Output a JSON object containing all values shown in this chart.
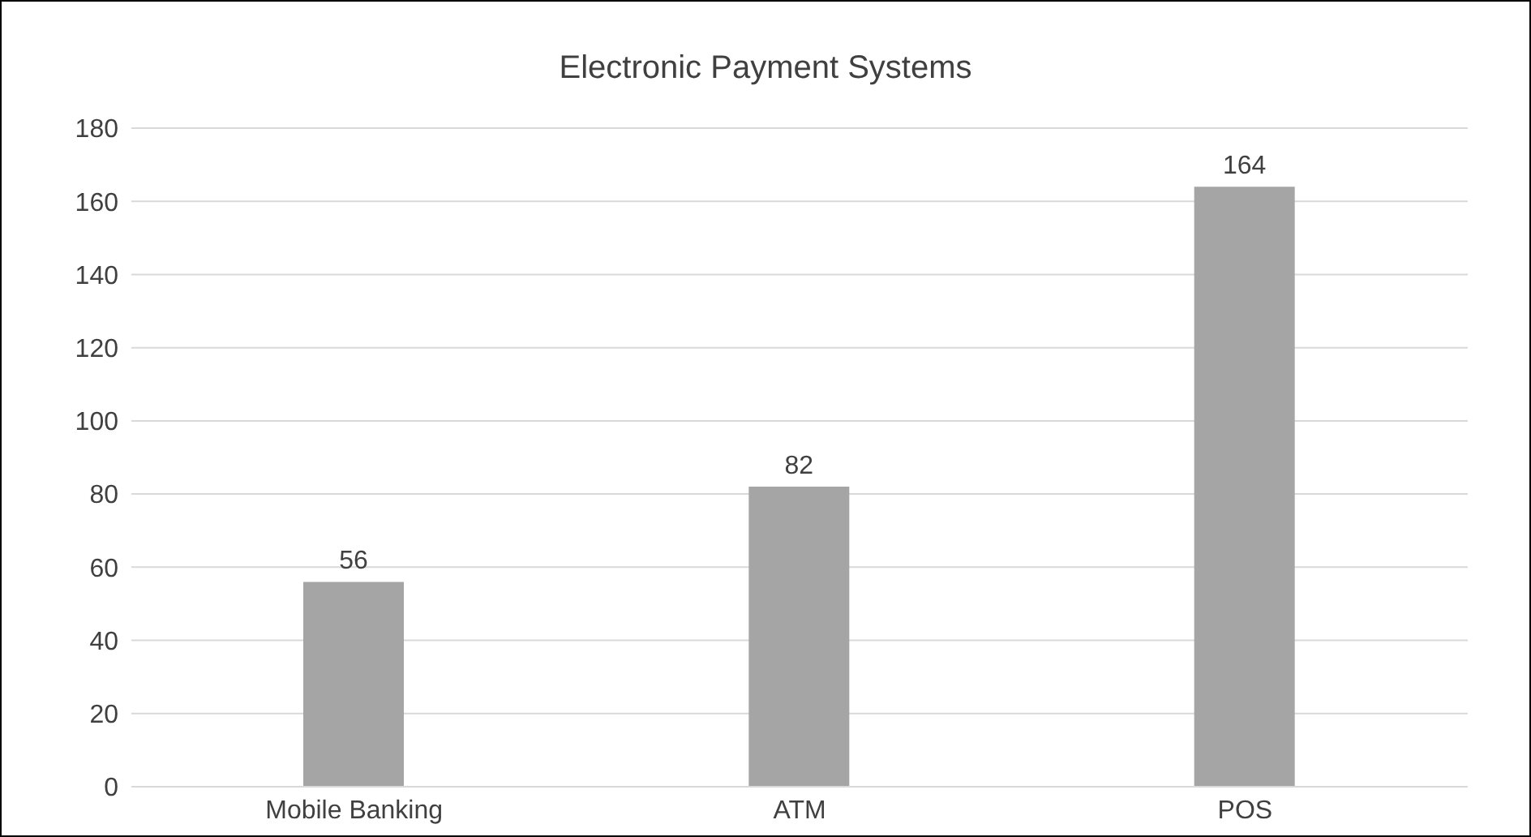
{
  "chart_data": {
    "type": "bar",
    "title": "Electronic Payment Systems",
    "categories": [
      "Mobile Banking",
      "ATM",
      "POS"
    ],
    "values": [
      56,
      82,
      164
    ],
    "color": "#a5a5a5",
    "ylim": [
      0,
      180
    ],
    "yticks": [
      0,
      20,
      40,
      60,
      80,
      100,
      120,
      140,
      160,
      180
    ],
    "grid": "y",
    "data_labels": true
  }
}
